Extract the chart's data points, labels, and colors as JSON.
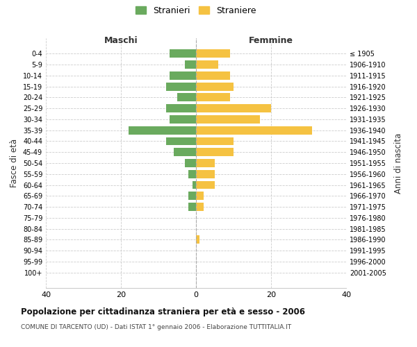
{
  "age_groups": [
    "0-4",
    "5-9",
    "10-14",
    "15-19",
    "20-24",
    "25-29",
    "30-34",
    "35-39",
    "40-44",
    "45-49",
    "50-54",
    "55-59",
    "60-64",
    "65-69",
    "70-74",
    "75-79",
    "80-84",
    "85-89",
    "90-94",
    "95-99",
    "100+"
  ],
  "birth_years": [
    "2001-2005",
    "1996-2000",
    "1991-1995",
    "1986-1990",
    "1981-1985",
    "1976-1980",
    "1971-1975",
    "1966-1970",
    "1961-1965",
    "1956-1960",
    "1951-1955",
    "1946-1950",
    "1941-1945",
    "1936-1940",
    "1931-1935",
    "1926-1930",
    "1921-1925",
    "1916-1920",
    "1911-1915",
    "1906-1910",
    "≤ 1905"
  ],
  "maschi": [
    7,
    3,
    7,
    8,
    5,
    8,
    7,
    18,
    8,
    6,
    3,
    2,
    1,
    2,
    2,
    0,
    0,
    0,
    0,
    0,
    0
  ],
  "femmine": [
    9,
    6,
    9,
    10,
    9,
    20,
    17,
    31,
    10,
    10,
    5,
    5,
    5,
    2,
    2,
    0,
    0,
    1,
    0,
    0,
    0
  ],
  "color_maschi": "#6aaa5e",
  "color_femmine": "#f5c242",
  "title": "Popolazione per cittadinanza straniera per età e sesso - 2006",
  "subtitle": "COMUNE DI TARCENTO (UD) - Dati ISTAT 1° gennaio 2006 - Elaborazione TUTTITALIA.IT",
  "xlabel_left": "Maschi",
  "xlabel_right": "Femmine",
  "ylabel_left": "Fasce di età",
  "ylabel_right": "Anni di nascita",
  "xlim": 40,
  "legend_stranieri": "Stranieri",
  "legend_straniere": "Straniere",
  "background_color": "#ffffff",
  "grid_color": "#cccccc"
}
